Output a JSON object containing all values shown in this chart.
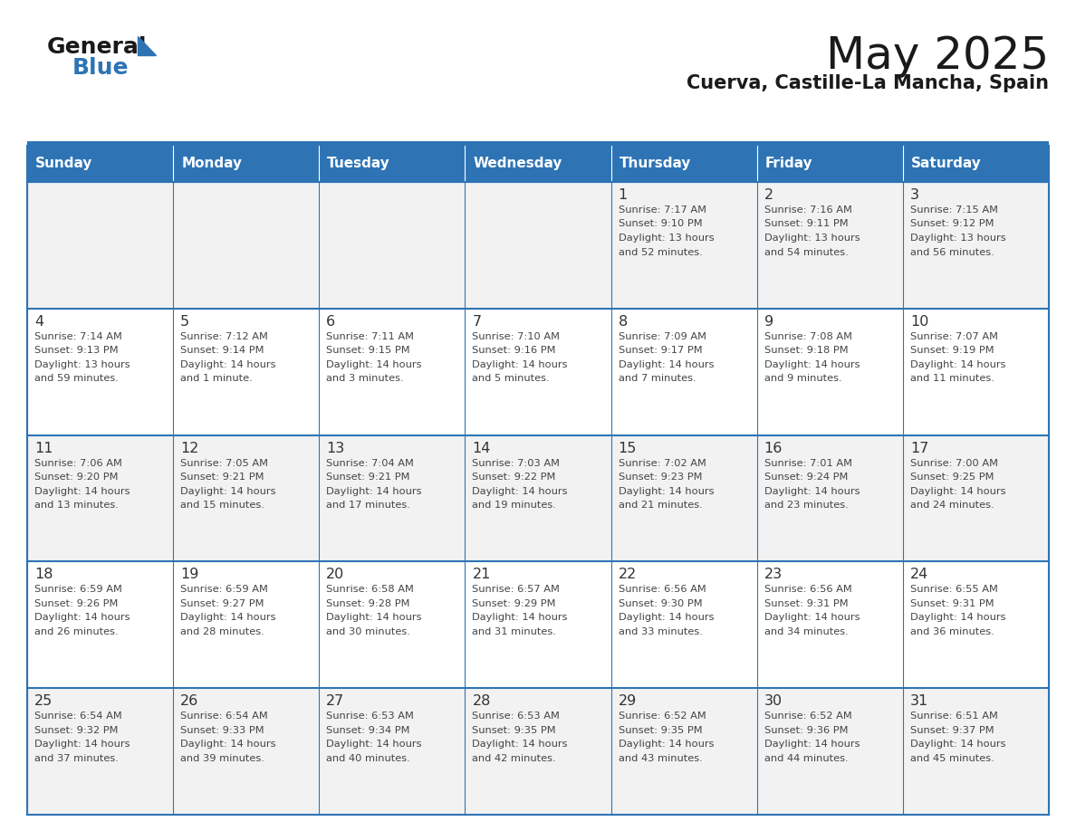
{
  "title": "May 2025",
  "subtitle": "Cuerva, Castille-La Mancha, Spain",
  "days_of_week": [
    "Sunday",
    "Monday",
    "Tuesday",
    "Wednesday",
    "Thursday",
    "Friday",
    "Saturday"
  ],
  "header_bg": "#2E74B5",
  "header_text": "#FFFFFF",
  "row_bg_even": "#F2F2F2",
  "row_bg_odd": "#FFFFFF",
  "cell_border": "#2E74B5",
  "day_number_color": "#333333",
  "text_color": "#444444",
  "title_color": "#1a1a1a",
  "subtitle_color": "#1a1a1a",
  "logo_general_color": "#1a1a1a",
  "logo_blue_color": "#2E74B5",
  "calendar_data": [
    [
      null,
      null,
      null,
      null,
      {
        "day": 1,
        "sunrise": "7:17 AM",
        "sunset": "9:10 PM",
        "daylight": "13 hours and 52 minutes."
      },
      {
        "day": 2,
        "sunrise": "7:16 AM",
        "sunset": "9:11 PM",
        "daylight": "13 hours and 54 minutes."
      },
      {
        "day": 3,
        "sunrise": "7:15 AM",
        "sunset": "9:12 PM",
        "daylight": "13 hours and 56 minutes."
      }
    ],
    [
      {
        "day": 4,
        "sunrise": "7:14 AM",
        "sunset": "9:13 PM",
        "daylight": "13 hours and 59 minutes."
      },
      {
        "day": 5,
        "sunrise": "7:12 AM",
        "sunset": "9:14 PM",
        "daylight": "14 hours and 1 minute."
      },
      {
        "day": 6,
        "sunrise": "7:11 AM",
        "sunset": "9:15 PM",
        "daylight": "14 hours and 3 minutes."
      },
      {
        "day": 7,
        "sunrise": "7:10 AM",
        "sunset": "9:16 PM",
        "daylight": "14 hours and 5 minutes."
      },
      {
        "day": 8,
        "sunrise": "7:09 AM",
        "sunset": "9:17 PM",
        "daylight": "14 hours and 7 minutes."
      },
      {
        "day": 9,
        "sunrise": "7:08 AM",
        "sunset": "9:18 PM",
        "daylight": "14 hours and 9 minutes."
      },
      {
        "day": 10,
        "sunrise": "7:07 AM",
        "sunset": "9:19 PM",
        "daylight": "14 hours and 11 minutes."
      }
    ],
    [
      {
        "day": 11,
        "sunrise": "7:06 AM",
        "sunset": "9:20 PM",
        "daylight": "14 hours and 13 minutes."
      },
      {
        "day": 12,
        "sunrise": "7:05 AM",
        "sunset": "9:21 PM",
        "daylight": "14 hours and 15 minutes."
      },
      {
        "day": 13,
        "sunrise": "7:04 AM",
        "sunset": "9:21 PM",
        "daylight": "14 hours and 17 minutes."
      },
      {
        "day": 14,
        "sunrise": "7:03 AM",
        "sunset": "9:22 PM",
        "daylight": "14 hours and 19 minutes."
      },
      {
        "day": 15,
        "sunrise": "7:02 AM",
        "sunset": "9:23 PM",
        "daylight": "14 hours and 21 minutes."
      },
      {
        "day": 16,
        "sunrise": "7:01 AM",
        "sunset": "9:24 PM",
        "daylight": "14 hours and 23 minutes."
      },
      {
        "day": 17,
        "sunrise": "7:00 AM",
        "sunset": "9:25 PM",
        "daylight": "14 hours and 24 minutes."
      }
    ],
    [
      {
        "day": 18,
        "sunrise": "6:59 AM",
        "sunset": "9:26 PM",
        "daylight": "14 hours and 26 minutes."
      },
      {
        "day": 19,
        "sunrise": "6:59 AM",
        "sunset": "9:27 PM",
        "daylight": "14 hours and 28 minutes."
      },
      {
        "day": 20,
        "sunrise": "6:58 AM",
        "sunset": "9:28 PM",
        "daylight": "14 hours and 30 minutes."
      },
      {
        "day": 21,
        "sunrise": "6:57 AM",
        "sunset": "9:29 PM",
        "daylight": "14 hours and 31 minutes."
      },
      {
        "day": 22,
        "sunrise": "6:56 AM",
        "sunset": "9:30 PM",
        "daylight": "14 hours and 33 minutes."
      },
      {
        "day": 23,
        "sunrise": "6:56 AM",
        "sunset": "9:31 PM",
        "daylight": "14 hours and 34 minutes."
      },
      {
        "day": 24,
        "sunrise": "6:55 AM",
        "sunset": "9:31 PM",
        "daylight": "14 hours and 36 minutes."
      }
    ],
    [
      {
        "day": 25,
        "sunrise": "6:54 AM",
        "sunset": "9:32 PM",
        "daylight": "14 hours and 37 minutes."
      },
      {
        "day": 26,
        "sunrise": "6:54 AM",
        "sunset": "9:33 PM",
        "daylight": "14 hours and 39 minutes."
      },
      {
        "day": 27,
        "sunrise": "6:53 AM",
        "sunset": "9:34 PM",
        "daylight": "14 hours and 40 minutes."
      },
      {
        "day": 28,
        "sunrise": "6:53 AM",
        "sunset": "9:35 PM",
        "daylight": "14 hours and 42 minutes."
      },
      {
        "day": 29,
        "sunrise": "6:52 AM",
        "sunset": "9:35 PM",
        "daylight": "14 hours and 43 minutes."
      },
      {
        "day": 30,
        "sunrise": "6:52 AM",
        "sunset": "9:36 PM",
        "daylight": "14 hours and 44 minutes."
      },
      {
        "day": 31,
        "sunrise": "6:51 AM",
        "sunset": "9:37 PM",
        "daylight": "14 hours and 45 minutes."
      }
    ]
  ]
}
